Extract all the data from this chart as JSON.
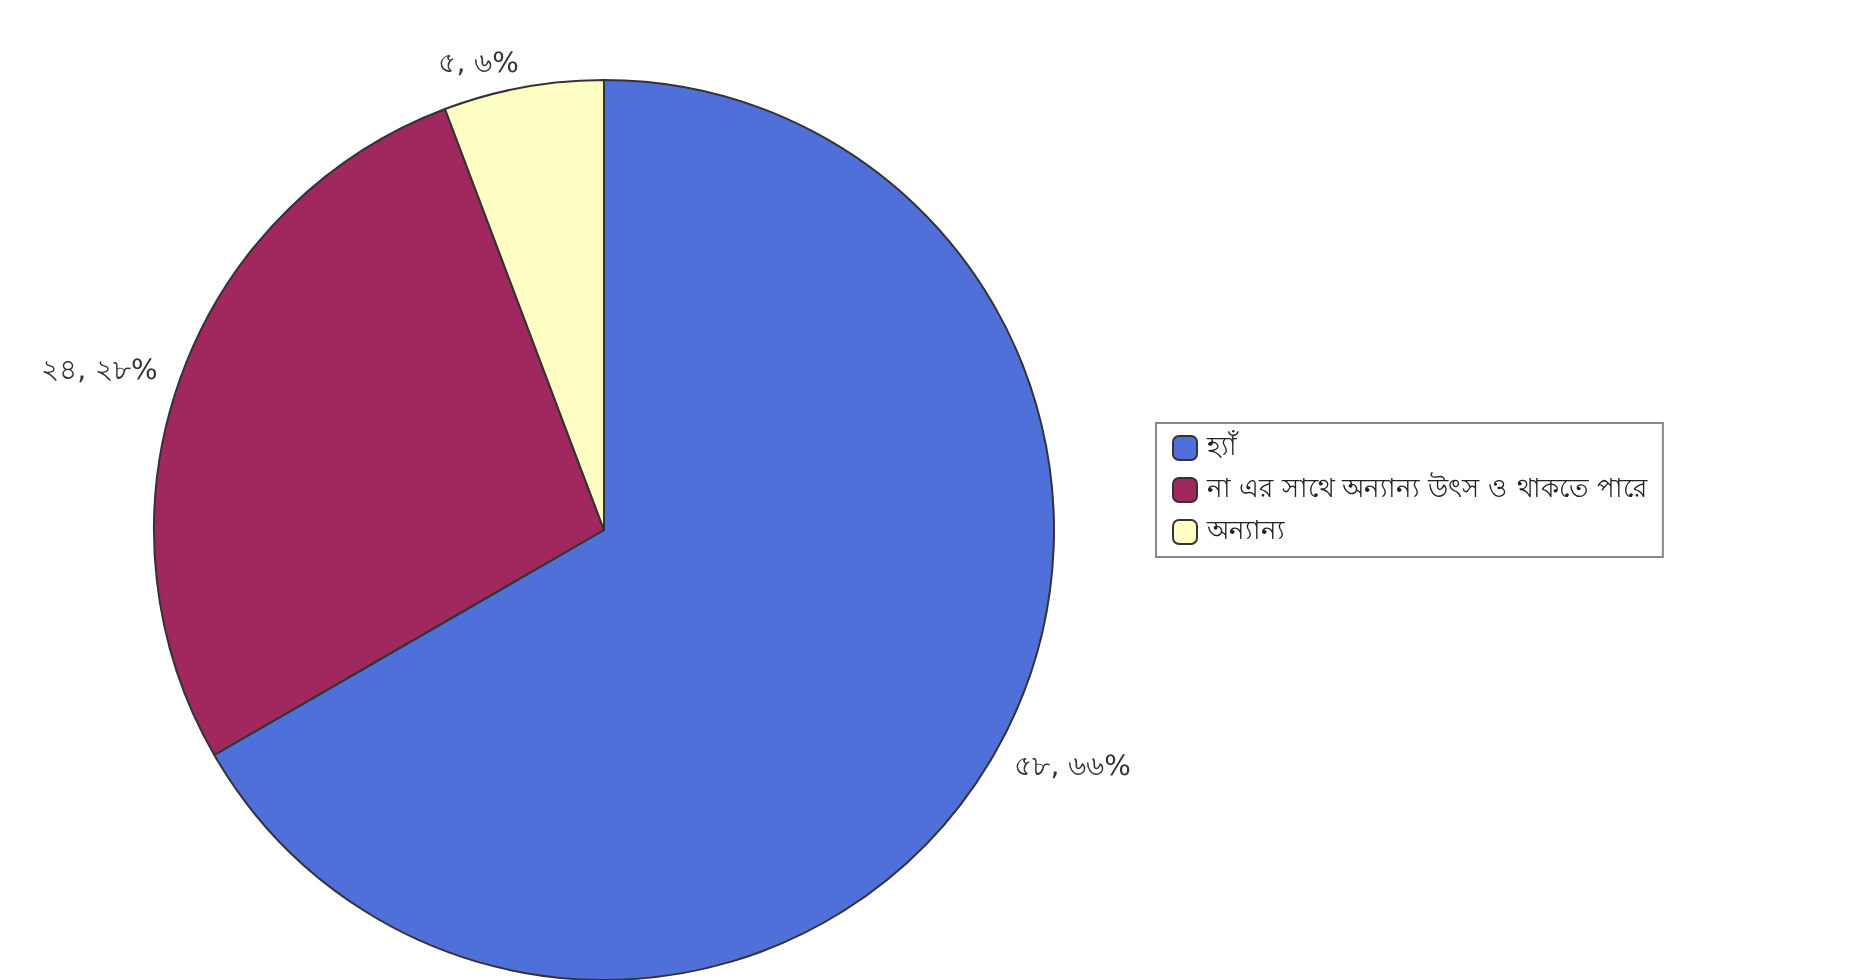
{
  "chart_data": {
    "type": "pie",
    "categories": [
      "হ্যাঁ",
      "না এর সাথে অন্যান্য উৎস ও থাকতে পারে",
      "অন্যান্য"
    ],
    "values": [
      58,
      24,
      5
    ],
    "colors": [
      "#4f6fd9",
      "#a0285f",
      "#ffffc4"
    ],
    "value_labels": [
      "৫৮, ৬৬%",
      "২৪, ২৮%",
      "৫, ৬%"
    ],
    "legend": "right"
  }
}
